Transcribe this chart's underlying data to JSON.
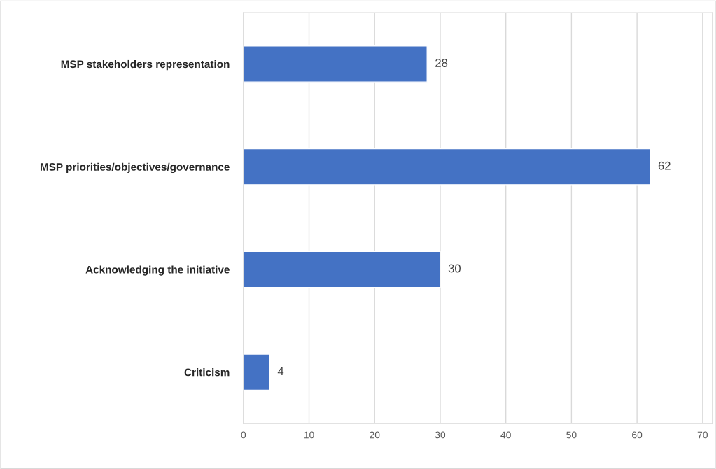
{
  "chart_data": {
    "type": "bar",
    "orientation": "horizontal",
    "categories": [
      "MSP stakeholders representation",
      "MSP priorities/objectives/governance",
      "Acknowledging the initiative",
      "Criticism"
    ],
    "values": [
      28,
      62,
      30,
      4
    ],
    "color": "#4472c4",
    "xlim": [
      0,
      71.5
    ],
    "xticks": [
      0,
      10,
      20,
      30,
      40,
      50,
      60,
      70
    ],
    "grid": "x",
    "data_labels": true
  }
}
